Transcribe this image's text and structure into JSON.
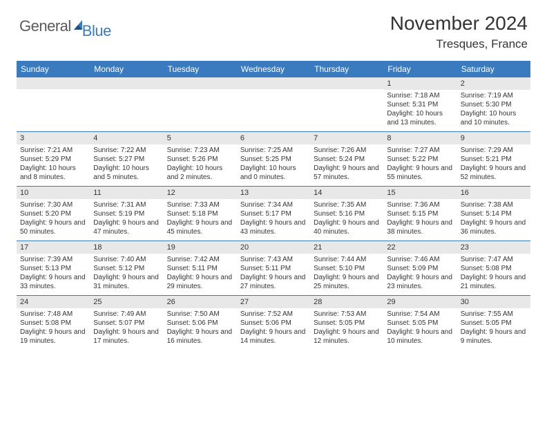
{
  "logo": {
    "text1": "General",
    "text2": "Blue"
  },
  "title": "November 2024",
  "location": "Tresques, France",
  "colors": {
    "brand_blue": "#3a7bbf",
    "gray_bar": "#e8e8e8",
    "text": "#333333"
  },
  "daysOfWeek": [
    "Sunday",
    "Monday",
    "Tuesday",
    "Wednesday",
    "Thursday",
    "Friday",
    "Saturday"
  ],
  "weeks": [
    [
      {
        "n": "",
        "sr": "",
        "ss": "",
        "dl": ""
      },
      {
        "n": "",
        "sr": "",
        "ss": "",
        "dl": ""
      },
      {
        "n": "",
        "sr": "",
        "ss": "",
        "dl": ""
      },
      {
        "n": "",
        "sr": "",
        "ss": "",
        "dl": ""
      },
      {
        "n": "",
        "sr": "",
        "ss": "",
        "dl": ""
      },
      {
        "n": "1",
        "sr": "Sunrise: 7:18 AM",
        "ss": "Sunset: 5:31 PM",
        "dl": "Daylight: 10 hours and 13 minutes."
      },
      {
        "n": "2",
        "sr": "Sunrise: 7:19 AM",
        "ss": "Sunset: 5:30 PM",
        "dl": "Daylight: 10 hours and 10 minutes."
      }
    ],
    [
      {
        "n": "3",
        "sr": "Sunrise: 7:21 AM",
        "ss": "Sunset: 5:29 PM",
        "dl": "Daylight: 10 hours and 8 minutes."
      },
      {
        "n": "4",
        "sr": "Sunrise: 7:22 AM",
        "ss": "Sunset: 5:27 PM",
        "dl": "Daylight: 10 hours and 5 minutes."
      },
      {
        "n": "5",
        "sr": "Sunrise: 7:23 AM",
        "ss": "Sunset: 5:26 PM",
        "dl": "Daylight: 10 hours and 2 minutes."
      },
      {
        "n": "6",
        "sr": "Sunrise: 7:25 AM",
        "ss": "Sunset: 5:25 PM",
        "dl": "Daylight: 10 hours and 0 minutes."
      },
      {
        "n": "7",
        "sr": "Sunrise: 7:26 AM",
        "ss": "Sunset: 5:24 PM",
        "dl": "Daylight: 9 hours and 57 minutes."
      },
      {
        "n": "8",
        "sr": "Sunrise: 7:27 AM",
        "ss": "Sunset: 5:22 PM",
        "dl": "Daylight: 9 hours and 55 minutes."
      },
      {
        "n": "9",
        "sr": "Sunrise: 7:29 AM",
        "ss": "Sunset: 5:21 PM",
        "dl": "Daylight: 9 hours and 52 minutes."
      }
    ],
    [
      {
        "n": "10",
        "sr": "Sunrise: 7:30 AM",
        "ss": "Sunset: 5:20 PM",
        "dl": "Daylight: 9 hours and 50 minutes."
      },
      {
        "n": "11",
        "sr": "Sunrise: 7:31 AM",
        "ss": "Sunset: 5:19 PM",
        "dl": "Daylight: 9 hours and 47 minutes."
      },
      {
        "n": "12",
        "sr": "Sunrise: 7:33 AM",
        "ss": "Sunset: 5:18 PM",
        "dl": "Daylight: 9 hours and 45 minutes."
      },
      {
        "n": "13",
        "sr": "Sunrise: 7:34 AM",
        "ss": "Sunset: 5:17 PM",
        "dl": "Daylight: 9 hours and 43 minutes."
      },
      {
        "n": "14",
        "sr": "Sunrise: 7:35 AM",
        "ss": "Sunset: 5:16 PM",
        "dl": "Daylight: 9 hours and 40 minutes."
      },
      {
        "n": "15",
        "sr": "Sunrise: 7:36 AM",
        "ss": "Sunset: 5:15 PM",
        "dl": "Daylight: 9 hours and 38 minutes."
      },
      {
        "n": "16",
        "sr": "Sunrise: 7:38 AM",
        "ss": "Sunset: 5:14 PM",
        "dl": "Daylight: 9 hours and 36 minutes."
      }
    ],
    [
      {
        "n": "17",
        "sr": "Sunrise: 7:39 AM",
        "ss": "Sunset: 5:13 PM",
        "dl": "Daylight: 9 hours and 33 minutes."
      },
      {
        "n": "18",
        "sr": "Sunrise: 7:40 AM",
        "ss": "Sunset: 5:12 PM",
        "dl": "Daylight: 9 hours and 31 minutes."
      },
      {
        "n": "19",
        "sr": "Sunrise: 7:42 AM",
        "ss": "Sunset: 5:11 PM",
        "dl": "Daylight: 9 hours and 29 minutes."
      },
      {
        "n": "20",
        "sr": "Sunrise: 7:43 AM",
        "ss": "Sunset: 5:11 PM",
        "dl": "Daylight: 9 hours and 27 minutes."
      },
      {
        "n": "21",
        "sr": "Sunrise: 7:44 AM",
        "ss": "Sunset: 5:10 PM",
        "dl": "Daylight: 9 hours and 25 minutes."
      },
      {
        "n": "22",
        "sr": "Sunrise: 7:46 AM",
        "ss": "Sunset: 5:09 PM",
        "dl": "Daylight: 9 hours and 23 minutes."
      },
      {
        "n": "23",
        "sr": "Sunrise: 7:47 AM",
        "ss": "Sunset: 5:08 PM",
        "dl": "Daylight: 9 hours and 21 minutes."
      }
    ],
    [
      {
        "n": "24",
        "sr": "Sunrise: 7:48 AM",
        "ss": "Sunset: 5:08 PM",
        "dl": "Daylight: 9 hours and 19 minutes."
      },
      {
        "n": "25",
        "sr": "Sunrise: 7:49 AM",
        "ss": "Sunset: 5:07 PM",
        "dl": "Daylight: 9 hours and 17 minutes."
      },
      {
        "n": "26",
        "sr": "Sunrise: 7:50 AM",
        "ss": "Sunset: 5:06 PM",
        "dl": "Daylight: 9 hours and 16 minutes."
      },
      {
        "n": "27",
        "sr": "Sunrise: 7:52 AM",
        "ss": "Sunset: 5:06 PM",
        "dl": "Daylight: 9 hours and 14 minutes."
      },
      {
        "n": "28",
        "sr": "Sunrise: 7:53 AM",
        "ss": "Sunset: 5:05 PM",
        "dl": "Daylight: 9 hours and 12 minutes."
      },
      {
        "n": "29",
        "sr": "Sunrise: 7:54 AM",
        "ss": "Sunset: 5:05 PM",
        "dl": "Daylight: 9 hours and 10 minutes."
      },
      {
        "n": "30",
        "sr": "Sunrise: 7:55 AM",
        "ss": "Sunset: 5:05 PM",
        "dl": "Daylight: 9 hours and 9 minutes."
      }
    ]
  ]
}
